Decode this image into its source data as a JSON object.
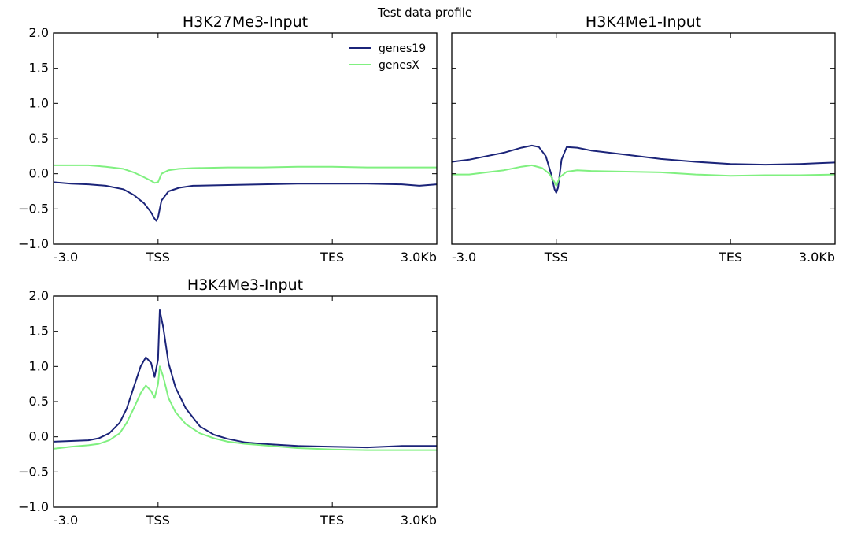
{
  "figure": {
    "suptitle": "Test data profile"
  },
  "colors": {
    "genes19": "#1b2479",
    "genesX": "#80f080",
    "axis": "#000000",
    "background": "#ffffff"
  },
  "chart_data": [
    {
      "type": "line",
      "title": "H3K27Me3-Input",
      "xlabel": "",
      "ylabel": "",
      "ylim": [
        -1.0,
        2.0
      ],
      "yticks": [
        "2.0",
        "1.5",
        "1.0",
        "0.5",
        "0.0",
        "−0.5",
        "−1.0"
      ],
      "ytick_values": [
        2.0,
        1.5,
        1.0,
        0.5,
        0.0,
        -0.5,
        -1.0
      ],
      "xticks": [
        "-3.0",
        "TSS",
        "TES",
        "3.0Kb"
      ],
      "xtick_positions": [
        0.0,
        3.0,
        8.0,
        11.0
      ],
      "xlim": [
        0,
        11
      ],
      "grid": false,
      "legend": {
        "show": true,
        "placement": "top-right"
      },
      "series": [
        {
          "name": "genes19",
          "x": [
            0,
            0.5,
            1.0,
            1.5,
            2.0,
            2.3,
            2.6,
            2.8,
            2.9,
            2.95,
            3.0,
            3.1,
            3.3,
            3.6,
            4.0,
            5.0,
            6.0,
            7.0,
            8.0,
            9.0,
            10.0,
            10.5,
            11.0
          ],
          "y": [
            -0.12,
            -0.14,
            -0.15,
            -0.17,
            -0.22,
            -0.3,
            -0.42,
            -0.55,
            -0.64,
            -0.67,
            -0.62,
            -0.38,
            -0.25,
            -0.2,
            -0.17,
            -0.16,
            -0.15,
            -0.14,
            -0.14,
            -0.14,
            -0.15,
            -0.17,
            -0.15
          ]
        },
        {
          "name": "genesX",
          "x": [
            0,
            0.5,
            1.0,
            1.5,
            2.0,
            2.3,
            2.6,
            2.8,
            2.9,
            3.0,
            3.1,
            3.3,
            3.6,
            4.0,
            5.0,
            6.0,
            7.0,
            8.0,
            9.0,
            10.0,
            11.0
          ],
          "y": [
            0.12,
            0.12,
            0.12,
            0.1,
            0.07,
            0.02,
            -0.05,
            -0.1,
            -0.13,
            -0.12,
            0.0,
            0.05,
            0.07,
            0.08,
            0.09,
            0.09,
            0.1,
            0.1,
            0.09,
            0.09,
            0.09
          ]
        }
      ]
    },
    {
      "type": "line",
      "title": "H3K4Me1-Input",
      "xlabel": "",
      "ylabel": "",
      "ylim": [
        -1.0,
        2.0
      ],
      "yticks": [],
      "ytick_values": [
        2.0,
        1.5,
        1.0,
        0.5,
        0.0,
        -0.5,
        -1.0
      ],
      "xticks": [
        "-3.0",
        "TSS",
        "TES",
        "3.0Kb"
      ],
      "xtick_positions": [
        0.0,
        3.0,
        8.0,
        11.0
      ],
      "xlim": [
        0,
        11
      ],
      "grid": false,
      "legend": {
        "show": false,
        "placement": ""
      },
      "series": [
        {
          "name": "genes19",
          "x": [
            0,
            0.5,
            1.0,
            1.5,
            2.0,
            2.3,
            2.5,
            2.7,
            2.85,
            2.95,
            3.0,
            3.05,
            3.15,
            3.3,
            3.6,
            4.0,
            5.0,
            6.0,
            7.0,
            8.0,
            9.0,
            10.0,
            10.5,
            11.0
          ],
          "y": [
            0.17,
            0.2,
            0.25,
            0.3,
            0.37,
            0.4,
            0.38,
            0.25,
            0.0,
            -0.22,
            -0.27,
            -0.2,
            0.2,
            0.38,
            0.37,
            0.33,
            0.27,
            0.21,
            0.17,
            0.14,
            0.13,
            0.14,
            0.15,
            0.16
          ]
        },
        {
          "name": "genesX",
          "x": [
            0,
            0.5,
            1.0,
            1.5,
            2.0,
            2.3,
            2.6,
            2.8,
            2.95,
            3.0,
            3.1,
            3.3,
            3.6,
            4.0,
            5.0,
            6.0,
            7.0,
            8.0,
            9.0,
            10.0,
            11.0
          ],
          "y": [
            -0.01,
            -0.01,
            0.02,
            0.05,
            0.1,
            0.12,
            0.08,
            0.0,
            -0.12,
            -0.17,
            -0.05,
            0.03,
            0.05,
            0.04,
            0.03,
            0.02,
            -0.01,
            -0.03,
            -0.02,
            -0.02,
            -0.01
          ]
        }
      ]
    },
    {
      "type": "line",
      "title": "H3K4Me3-Input",
      "xlabel": "",
      "ylabel": "",
      "ylim": [
        -1.0,
        2.0
      ],
      "yticks": [
        "2.0",
        "1.5",
        "1.0",
        "0.5",
        "0.0",
        "−0.5",
        "−1.0"
      ],
      "ytick_values": [
        2.0,
        1.5,
        1.0,
        0.5,
        0.0,
        -0.5,
        -1.0
      ],
      "xticks": [
        "-3.0",
        "TSS",
        "TES",
        "3.0Kb"
      ],
      "xtick_positions": [
        0.0,
        3.0,
        8.0,
        11.0
      ],
      "xlim": [
        0,
        11
      ],
      "grid": false,
      "legend": {
        "show": false,
        "placement": ""
      },
      "series": [
        {
          "name": "genes19",
          "x": [
            0,
            0.5,
            1.0,
            1.3,
            1.6,
            1.9,
            2.1,
            2.3,
            2.5,
            2.65,
            2.8,
            2.9,
            3.0,
            3.05,
            3.15,
            3.3,
            3.5,
            3.8,
            4.2,
            4.6,
            5.0,
            5.5,
            6.0,
            7.0,
            8.0,
            9.0,
            10.0,
            11.0
          ],
          "y": [
            -0.07,
            -0.06,
            -0.05,
            -0.02,
            0.05,
            0.2,
            0.4,
            0.7,
            1.0,
            1.13,
            1.05,
            0.85,
            1.1,
            1.8,
            1.55,
            1.05,
            0.7,
            0.4,
            0.15,
            0.03,
            -0.03,
            -0.08,
            -0.1,
            -0.13,
            -0.14,
            -0.15,
            -0.13,
            -0.13
          ]
        },
        {
          "name": "genesX",
          "x": [
            0,
            0.5,
            1.0,
            1.3,
            1.6,
            1.9,
            2.1,
            2.3,
            2.5,
            2.65,
            2.8,
            2.9,
            3.0,
            3.05,
            3.15,
            3.3,
            3.5,
            3.8,
            4.2,
            4.6,
            5.0,
            5.5,
            6.0,
            7.0,
            8.0,
            9.0,
            10.0,
            11.0
          ],
          "y": [
            -0.17,
            -0.14,
            -0.12,
            -0.1,
            -0.05,
            0.05,
            0.2,
            0.4,
            0.62,
            0.73,
            0.65,
            0.55,
            0.75,
            1.0,
            0.85,
            0.55,
            0.35,
            0.18,
            0.05,
            -0.02,
            -0.07,
            -0.1,
            -0.12,
            -0.16,
            -0.18,
            -0.19,
            -0.19,
            -0.19
          ]
        }
      ]
    }
  ]
}
